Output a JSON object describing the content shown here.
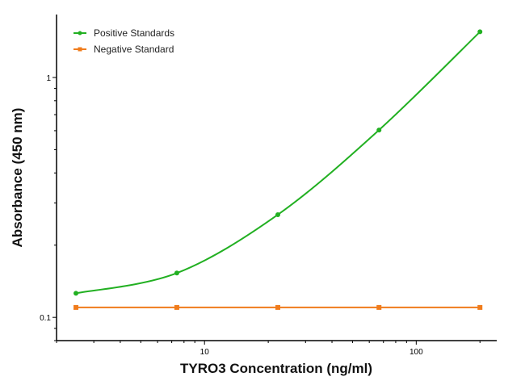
{
  "chart_data": {
    "type": "line",
    "title": "",
    "xlabel": "TYRO3 Concentration (ng/ml)",
    "ylabel": "Absorbance (450 nm)",
    "xscale": "log",
    "yscale": "log",
    "xlim": [
      2.0,
      240
    ],
    "ylim": [
      0.08,
      1.83
    ],
    "xticks": [
      {
        "value": 10,
        "label": "10"
      },
      {
        "value": 100,
        "label": "100"
      }
    ],
    "yticks": [
      {
        "value": 0.1,
        "label": "0.1"
      },
      {
        "value": 1,
        "label": "1"
      }
    ],
    "grid": false,
    "legend_position": "top-left",
    "series": [
      {
        "name": "Positive Standards",
        "color": "#22b022",
        "marker": "circle",
        "fit": "smooth-curve",
        "x": [
          2.47,
          7.4,
          22.2,
          66.7,
          200
        ],
        "y": [
          0.126,
          0.153,
          0.268,
          0.604,
          1.55
        ]
      },
      {
        "name": "Negative Standard",
        "color": "#f07c1c",
        "marker": "square",
        "fit": "line",
        "x": [
          2.47,
          7.4,
          22.2,
          66.7,
          200
        ],
        "y": [
          0.11,
          0.11,
          0.11,
          0.11,
          0.11
        ]
      }
    ]
  }
}
